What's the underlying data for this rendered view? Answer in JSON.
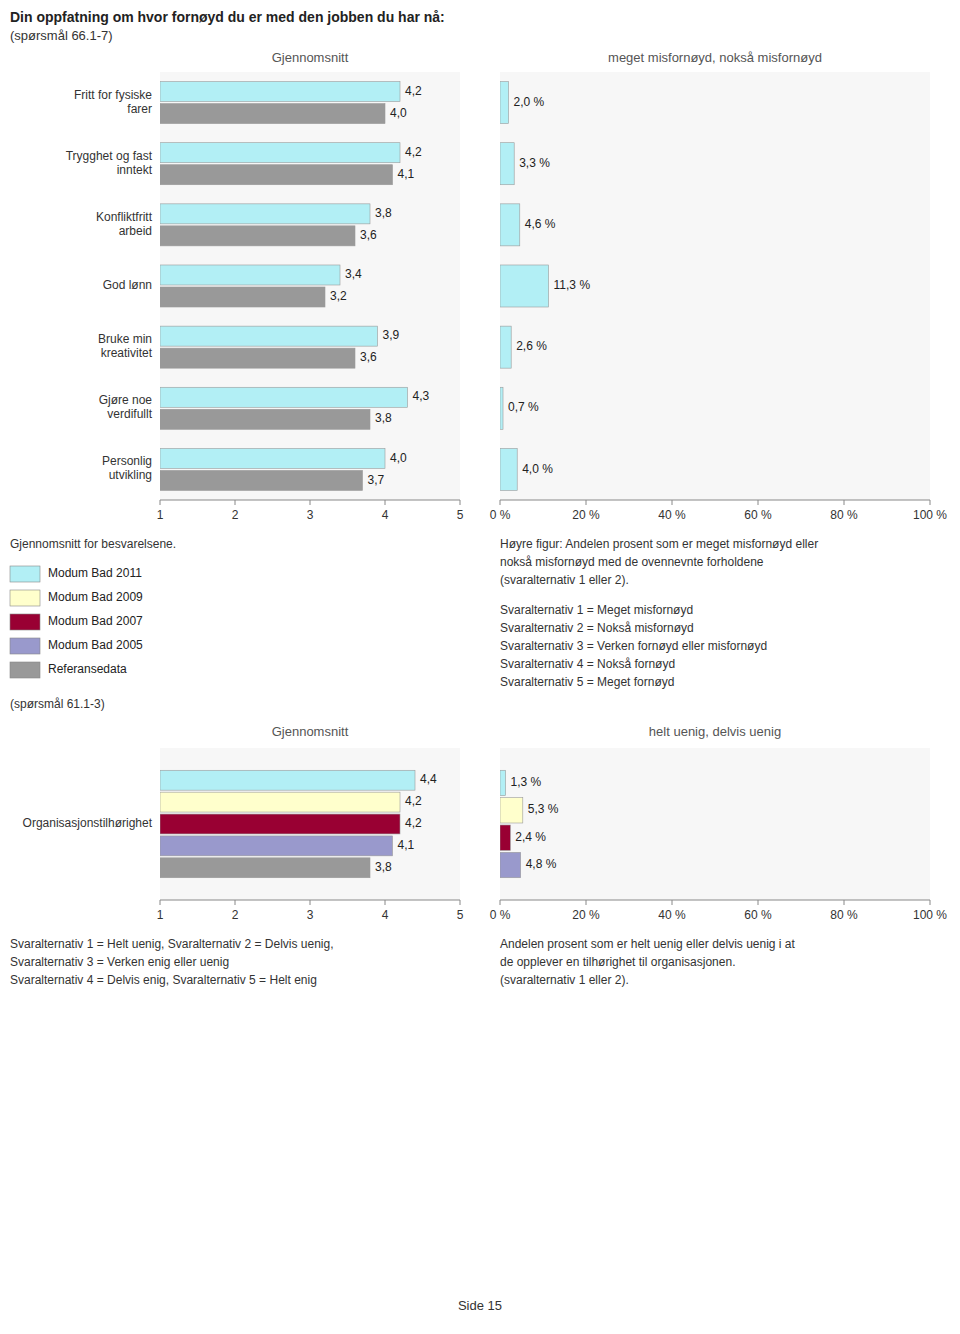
{
  "title": "Din oppfatning om hvor fornøyd du er med den jobben du har nå:",
  "subtitle": "(spørsmål 66.1-7)",
  "annotations": [
    "Side 15"
  ],
  "chart_data": [
    {
      "type": "bar",
      "orientation": "horizontal",
      "title": "Gjennomsnitt",
      "categories": [
        "Fritt for fysiske\nfarer",
        "Trygghet og fast\ninntekt",
        "Konfliktfritt\narbeid",
        "God lønn",
        "Bruke min\nkreativitet",
        "Gjøre noe\nverdifullt",
        "Personlig\nutvikling"
      ],
      "series": [
        {
          "color": "#b2eff5",
          "values": [
            4.2,
            4.2,
            3.8,
            3.4,
            3.9,
            4.3,
            4.0
          ],
          "value_labels": [
            "4,2",
            "4,2",
            "3,8",
            "3,4",
            "3,9",
            "4,3",
            "4,0"
          ]
        },
        {
          "color": "#999999",
          "values": [
            4.0,
            4.1,
            3.6,
            3.2,
            3.6,
            3.8,
            3.7
          ],
          "value_labels": [
            "4,0",
            "4,1",
            "3,6",
            "3,2",
            "3,6",
            "3,8",
            "3,7"
          ]
        }
      ],
      "xlim": [
        1,
        5
      ],
      "xticks": [
        1,
        2,
        3,
        4,
        5
      ],
      "grid": false,
      "data_labels": true,
      "annotations": [
        "Gjennomsnitt for besvarelsene.",
        "(spørsmål 61.1-3)"
      ]
    },
    {
      "type": "bar",
      "orientation": "horizontal",
      "title": "meget misfornøyd, nokså misfornøyd",
      "categories": [
        "Fritt for fysiske\nfarer",
        "Trygghet og fast\ninntekt",
        "Konfliktfritt\narbeid",
        "God lønn",
        "Bruke min\nkreativitet",
        "Gjøre noe\nverdifullt",
        "Personlig\nutvikling"
      ],
      "tick_labels": "x",
      "series": [
        {
          "color": "#b2eff5",
          "values": [
            2.0,
            3.3,
            4.6,
            11.3,
            2.6,
            0.7,
            4.0
          ],
          "value_labels": [
            "2,0 %",
            "3,3 %",
            "4,6 %",
            "11,3 %",
            "2,6 %",
            "0,7 %",
            "4,0 %"
          ]
        }
      ],
      "xlim": [
        0,
        100
      ],
      "xticks": [
        {
          "value": 0,
          "label": "0 %"
        },
        {
          "value": 20,
          "label": "20 %"
        },
        {
          "value": 40,
          "label": "40 %"
        },
        {
          "value": 60,
          "label": "60 %"
        },
        {
          "value": 80,
          "label": "80 %"
        },
        {
          "value": 100,
          "label": "100 %"
        }
      ],
      "grid": false,
      "data_labels": true,
      "annotations": [
        "Høyre figur: Andelen prosent som er meget misfornøyd eller",
        "nokså misfornøyd med de ovennevnte forholdene",
        "(svaralternativ 1 eller 2).",
        "Svaralternativ 1 = Meget misfornøyd",
        "Svaralternativ 2 = Nokså misfornøyd",
        "Svaralternativ 3 = Verken fornøyd eller misfornøyd",
        "Svaralternativ 4 = Nokså fornøyd",
        "Svaralternativ 5 = Meget fornøyd"
      ]
    },
    {
      "type": "bar",
      "orientation": "horizontal",
      "title": "Gjennomsnitt",
      "categories": [
        "Organisasjonstilhørighet"
      ],
      "series": [
        {
          "name": "Modum Bad 2011",
          "color": "#b2eff5",
          "values": [
            4.4
          ],
          "value_labels": [
            "4,4"
          ]
        },
        {
          "name": "Modum Bad 2009",
          "color": "#ffffcc",
          "values": [
            4.2
          ],
          "value_labels": [
            "4,2"
          ]
        },
        {
          "name": "Modum Bad 2007",
          "color": "#990033",
          "values": [
            4.2
          ],
          "value_labels": [
            "4,2"
          ]
        },
        {
          "name": "Modum Bad 2005",
          "color": "#9999cc",
          "values": [
            4.1
          ],
          "value_labels": [
            "4,1"
          ]
        },
        {
          "name": "Referansedata",
          "color": "#999999",
          "values": [
            3.8
          ],
          "value_labels": [
            "3,8"
          ]
        }
      ],
      "xlim": [
        1,
        5
      ],
      "xticks": [
        1,
        2,
        3,
        4,
        5
      ],
      "grid": false,
      "data_labels": true,
      "legend": "above",
      "annotations": [
        "Svaralternativ 1 = Helt uenig, Svaralternativ 2 = Delvis uenig,",
        "Svaralternativ 3 = Verken enig eller uenig",
        "Svaralternativ 4 = Delvis enig, Svaralternativ 5 = Helt enig"
      ]
    },
    {
      "type": "bar",
      "orientation": "horizontal",
      "title": "helt uenig, delvis uenig",
      "categories": [
        "Organisasjonstilhørighet"
      ],
      "tick_labels": "x",
      "series": [
        {
          "color": "#b2eff5",
          "values": [
            1.3
          ],
          "value_labels": [
            "1,3 %"
          ]
        },
        {
          "color": "#ffffcc",
          "values": [
            5.3
          ],
          "value_labels": [
            "5,3 %"
          ]
        },
        {
          "color": "#990033",
          "values": [
            2.4
          ],
          "value_labels": [
            "2,4 %"
          ]
        },
        {
          "color": "#9999cc",
          "values": [
            4.8
          ],
          "value_labels": [
            "4,8 %"
          ]
        }
      ],
      "xlim": [
        0,
        100
      ],
      "xticks": [
        {
          "value": 0,
          "label": "0 %"
        },
        {
          "value": 20,
          "label": "20 %"
        },
        {
          "value": 40,
          "label": "40 %"
        },
        {
          "value": 60,
          "label": "60 %"
        },
        {
          "value": 80,
          "label": "80 %"
        },
        {
          "value": 100,
          "label": "100 %"
        }
      ],
      "grid": false,
      "data_labels": true,
      "annotations": [
        "Andelen prosent som er helt uenig eller delvis uenig i at",
        "de opplever en tilhørighet til organisasjonen.",
        "(svaralternativ 1 eller 2)."
      ]
    }
  ]
}
